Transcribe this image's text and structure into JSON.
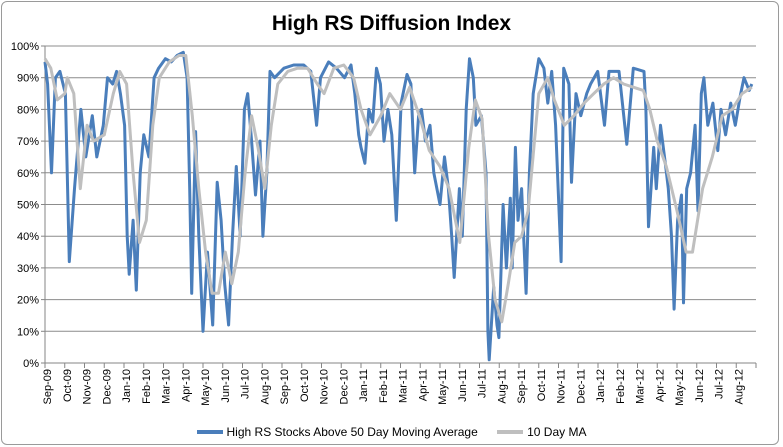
{
  "chart_data": {
    "type": "line",
    "title": "High RS Diffusion Index",
    "xlabel": "",
    "ylabel": "",
    "ylim": [
      0,
      100
    ],
    "xlim": [
      "2009-09-01",
      "2012-09-01"
    ],
    "y_ticks": [
      "0%",
      "10%",
      "20%",
      "30%",
      "40%",
      "50%",
      "60%",
      "70%",
      "80%",
      "90%",
      "100%"
    ],
    "x_ticks": [
      "Sep-09",
      "Oct-09",
      "Nov-09",
      "Dec-09",
      "Jan-10",
      "Feb-10",
      "Mar-10",
      "Apr-10",
      "May-10",
      "Jun-10",
      "Jul-10",
      "Aug-10",
      "Sep-10",
      "Oct-10",
      "Nov-10",
      "Dec-10",
      "Jan-11",
      "Feb-11",
      "Mar-11",
      "Apr-11",
      "May-11",
      "Jun-11",
      "Jul-11",
      "Aug-11",
      "Sep-11",
      "Oct-11",
      "Nov-11",
      "Dec-11",
      "Jan-12",
      "Feb-12",
      "Mar-12",
      "Apr-12",
      "May-12",
      "Jun-12",
      "Jul-12",
      "Aug-12"
    ],
    "grid": "horizontal major gridlines",
    "legend_position": "bottom",
    "series": [
      {
        "name": "High RS Stocks Above 50 Day Moving Average",
        "color": "#4a7ebb",
        "points": [
          [
            "2009-09-01",
            95
          ],
          [
            "2009-09-05",
            88
          ],
          [
            "2009-09-11",
            60
          ],
          [
            "2009-09-17",
            90
          ],
          [
            "2009-09-24",
            92
          ],
          [
            "2009-10-02",
            85
          ],
          [
            "2009-10-08",
            32
          ],
          [
            "2009-10-16",
            55
          ],
          [
            "2009-10-26",
            80
          ],
          [
            "2009-11-03",
            65
          ],
          [
            "2009-11-13",
            78
          ],
          [
            "2009-11-20",
            65
          ],
          [
            "2009-11-30",
            75
          ],
          [
            "2009-12-06",
            90
          ],
          [
            "2009-12-14",
            88
          ],
          [
            "2009-12-20",
            92
          ],
          [
            "2009-12-26",
            85
          ],
          [
            "2010-01-02",
            75
          ],
          [
            "2010-01-06",
            40
          ],
          [
            "2010-01-09",
            28
          ],
          [
            "2010-01-15",
            45
          ],
          [
            "2010-01-20",
            23
          ],
          [
            "2010-01-26",
            60
          ],
          [
            "2010-02-01",
            72
          ],
          [
            "2010-02-09",
            65
          ],
          [
            "2010-02-17",
            90
          ],
          [
            "2010-02-24",
            93
          ],
          [
            "2010-03-04",
            96
          ],
          [
            "2010-03-13",
            95
          ],
          [
            "2010-03-22",
            97
          ],
          [
            "2010-04-01",
            98
          ],
          [
            "2010-04-07",
            90
          ],
          [
            "2010-04-11",
            55
          ],
          [
            "2010-04-14",
            22
          ],
          [
            "2010-04-20",
            73
          ],
          [
            "2010-04-25",
            40
          ],
          [
            "2010-05-01",
            10
          ],
          [
            "2010-05-08",
            35
          ],
          [
            "2010-05-16",
            12
          ],
          [
            "2010-05-23",
            57
          ],
          [
            "2010-05-29",
            45
          ],
          [
            "2010-06-04",
            25
          ],
          [
            "2010-06-10",
            12
          ],
          [
            "2010-06-16",
            40
          ],
          [
            "2010-06-22",
            62
          ],
          [
            "2010-06-28",
            40
          ],
          [
            "2010-07-04",
            80
          ],
          [
            "2010-07-09",
            85
          ],
          [
            "2010-07-15",
            70
          ],
          [
            "2010-07-21",
            53
          ],
          [
            "2010-07-28",
            70
          ],
          [
            "2010-08-02",
            40
          ],
          [
            "2010-08-08",
            60
          ],
          [
            "2010-08-13",
            92
          ],
          [
            "2010-08-20",
            90
          ],
          [
            "2010-09-04",
            93
          ],
          [
            "2010-09-19",
            94
          ],
          [
            "2010-10-04",
            94
          ],
          [
            "2010-10-15",
            92
          ],
          [
            "2010-10-24",
            75
          ],
          [
            "2010-10-30",
            90
          ],
          [
            "2010-11-12",
            95
          ],
          [
            "2010-11-24",
            93
          ],
          [
            "2010-12-06",
            90
          ],
          [
            "2010-12-16",
            94
          ],
          [
            "2010-12-22",
            85
          ],
          [
            "2010-12-28",
            72
          ],
          [
            "2011-01-01",
            68
          ],
          [
            "2011-01-07",
            63
          ],
          [
            "2011-01-13",
            80
          ],
          [
            "2011-01-19",
            76
          ],
          [
            "2011-01-25",
            93
          ],
          [
            "2011-01-31",
            88
          ],
          [
            "2011-02-06",
            70
          ],
          [
            "2011-02-12",
            80
          ],
          [
            "2011-02-18",
            72
          ],
          [
            "2011-02-25",
            45
          ],
          [
            "2011-03-02",
            82
          ],
          [
            "2011-03-11",
            91
          ],
          [
            "2011-03-17",
            88
          ],
          [
            "2011-03-23",
            60
          ],
          [
            "2011-03-29",
            78
          ],
          [
            "2011-04-03",
            80
          ],
          [
            "2011-04-09",
            70
          ],
          [
            "2011-04-16",
            75
          ],
          [
            "2011-04-22",
            60
          ],
          [
            "2011-05-01",
            50
          ],
          [
            "2011-05-08",
            65
          ],
          [
            "2011-05-14",
            55
          ],
          [
            "2011-05-19",
            40
          ],
          [
            "2011-05-23",
            27
          ],
          [
            "2011-05-31",
            55
          ],
          [
            "2011-06-05",
            40
          ],
          [
            "2011-06-11",
            80
          ],
          [
            "2011-06-16",
            96
          ],
          [
            "2011-06-22",
            90
          ],
          [
            "2011-06-26",
            75
          ],
          [
            "2011-07-04",
            78
          ],
          [
            "2011-07-11",
            60
          ],
          [
            "2011-07-14",
            10
          ],
          [
            "2011-07-16",
            1
          ],
          [
            "2011-07-23",
            24
          ],
          [
            "2011-07-28",
            12
          ],
          [
            "2011-07-31",
            8
          ],
          [
            "2011-08-07",
            50
          ],
          [
            "2011-08-12",
            30
          ],
          [
            "2011-08-18",
            52
          ],
          [
            "2011-08-21",
            30
          ],
          [
            "2011-08-26",
            68
          ],
          [
            "2011-08-30",
            45
          ],
          [
            "2011-09-05",
            55
          ],
          [
            "2011-09-12",
            22
          ],
          [
            "2011-09-17",
            60
          ],
          [
            "2011-09-23",
            85
          ],
          [
            "2011-10-01",
            96
          ],
          [
            "2011-10-09",
            93
          ],
          [
            "2011-10-15",
            82
          ],
          [
            "2011-10-21",
            92
          ],
          [
            "2011-10-27",
            75
          ],
          [
            "2011-11-05",
            32
          ],
          [
            "2011-11-09",
            93
          ],
          [
            "2011-11-17",
            88
          ],
          [
            "2011-11-21",
            57
          ],
          [
            "2011-11-28",
            85
          ],
          [
            "2011-12-05",
            78
          ],
          [
            "2011-12-14",
            85
          ],
          [
            "2011-12-20",
            88
          ],
          [
            "2011-12-31",
            92
          ],
          [
            "2012-01-11",
            75
          ],
          [
            "2012-01-18",
            92
          ],
          [
            "2012-02-03",
            92
          ],
          [
            "2012-02-15",
            69
          ],
          [
            "2012-02-25",
            93
          ],
          [
            "2012-03-11",
            92
          ],
          [
            "2012-03-14",
            80
          ],
          [
            "2012-03-18",
            43
          ],
          [
            "2012-03-26",
            68
          ],
          [
            "2012-03-30",
            55
          ],
          [
            "2012-04-06",
            75
          ],
          [
            "2012-04-14",
            62
          ],
          [
            "2012-04-18",
            55
          ],
          [
            "2012-04-23",
            40
          ],
          [
            "2012-04-27",
            17
          ],
          [
            "2012-05-02",
            45
          ],
          [
            "2012-05-08",
            53
          ],
          [
            "2012-05-11",
            19
          ],
          [
            "2012-05-16",
            55
          ],
          [
            "2012-05-22",
            60
          ],
          [
            "2012-05-29",
            75
          ],
          [
            "2012-06-03",
            48
          ],
          [
            "2012-06-08",
            85
          ],
          [
            "2012-06-12",
            90
          ],
          [
            "2012-06-18",
            75
          ],
          [
            "2012-06-26",
            82
          ],
          [
            "2012-07-03",
            67
          ],
          [
            "2012-07-08",
            80
          ],
          [
            "2012-07-15",
            72
          ],
          [
            "2012-07-23",
            82
          ],
          [
            "2012-07-30",
            75
          ],
          [
            "2012-08-07",
            84
          ],
          [
            "2012-08-13",
            90
          ],
          [
            "2012-08-21",
            86
          ],
          [
            "2012-08-25",
            88
          ]
        ]
      },
      {
        "name": "10 Day MA",
        "color": "#bfbfbf",
        "points": [
          [
            "2009-09-01",
            96
          ],
          [
            "2009-09-10",
            93
          ],
          [
            "2009-09-20",
            83
          ],
          [
            "2009-10-01",
            85
          ],
          [
            "2009-10-05",
            90
          ],
          [
            "2009-10-15",
            85
          ],
          [
            "2009-10-25",
            55
          ],
          [
            "2009-11-05",
            75
          ],
          [
            "2009-11-15",
            70
          ],
          [
            "2009-12-01",
            72
          ],
          [
            "2009-12-15",
            85
          ],
          [
            "2009-12-25",
            92
          ],
          [
            "2010-01-05",
            88
          ],
          [
            "2010-01-15",
            60
          ],
          [
            "2010-01-25",
            38
          ],
          [
            "2010-02-05",
            45
          ],
          [
            "2010-02-15",
            75
          ],
          [
            "2010-02-25",
            90
          ],
          [
            "2010-03-10",
            95
          ],
          [
            "2010-03-25",
            97
          ],
          [
            "2010-04-05",
            97
          ],
          [
            "2010-04-15",
            78
          ],
          [
            "2010-04-25",
            55
          ],
          [
            "2010-05-05",
            35
          ],
          [
            "2010-05-15",
            22
          ],
          [
            "2010-05-25",
            22
          ],
          [
            "2010-06-05",
            35
          ],
          [
            "2010-06-15",
            25
          ],
          [
            "2010-06-25",
            35
          ],
          [
            "2010-07-05",
            60
          ],
          [
            "2010-07-15",
            78
          ],
          [
            "2010-07-25",
            68
          ],
          [
            "2010-08-05",
            55
          ],
          [
            "2010-08-15",
            75
          ],
          [
            "2010-08-25",
            88
          ],
          [
            "2010-09-10",
            92
          ],
          [
            "2010-09-25",
            93
          ],
          [
            "2010-10-10",
            93
          ],
          [
            "2010-10-25",
            88
          ],
          [
            "2010-11-05",
            85
          ],
          [
            "2010-11-20",
            93
          ],
          [
            "2010-12-05",
            94
          ],
          [
            "2010-12-20",
            90
          ],
          [
            "2011-01-01",
            80
          ],
          [
            "2011-01-15",
            72
          ],
          [
            "2011-02-01",
            78
          ],
          [
            "2011-02-15",
            85
          ],
          [
            "2011-03-01",
            80
          ],
          [
            "2011-03-15",
            87
          ],
          [
            "2011-04-01",
            77
          ],
          [
            "2011-04-15",
            67
          ],
          [
            "2011-05-01",
            62
          ],
          [
            "2011-05-15",
            55
          ],
          [
            "2011-06-01",
            38
          ],
          [
            "2011-06-15",
            68
          ],
          [
            "2011-06-25",
            83
          ],
          [
            "2011-07-05",
            77
          ],
          [
            "2011-07-15",
            40
          ],
          [
            "2011-07-25",
            20
          ],
          [
            "2011-08-05",
            13
          ],
          [
            "2011-08-15",
            25
          ],
          [
            "2011-08-25",
            38
          ],
          [
            "2011-09-05",
            40
          ],
          [
            "2011-09-15",
            48
          ],
          [
            "2011-10-01",
            85
          ],
          [
            "2011-10-15",
            90
          ],
          [
            "2011-10-25",
            83
          ],
          [
            "2011-11-10",
            75
          ],
          [
            "2011-11-25",
            78
          ],
          [
            "2011-12-10",
            82
          ],
          [
            "2011-12-25",
            85
          ],
          [
            "2012-01-10",
            88
          ],
          [
            "2012-01-25",
            90
          ],
          [
            "2012-02-10",
            88
          ],
          [
            "2012-02-25",
            87
          ],
          [
            "2012-03-10",
            86
          ],
          [
            "2012-03-20",
            80
          ],
          [
            "2012-04-01",
            70
          ],
          [
            "2012-04-15",
            62
          ],
          [
            "2012-05-01",
            48
          ],
          [
            "2012-05-15",
            35
          ],
          [
            "2012-05-25",
            35
          ],
          [
            "2012-06-10",
            55
          ],
          [
            "2012-06-25",
            65
          ],
          [
            "2012-07-10",
            78
          ],
          [
            "2012-07-25",
            80
          ],
          [
            "2012-08-10",
            85
          ],
          [
            "2012-08-25",
            87
          ]
        ]
      }
    ]
  }
}
